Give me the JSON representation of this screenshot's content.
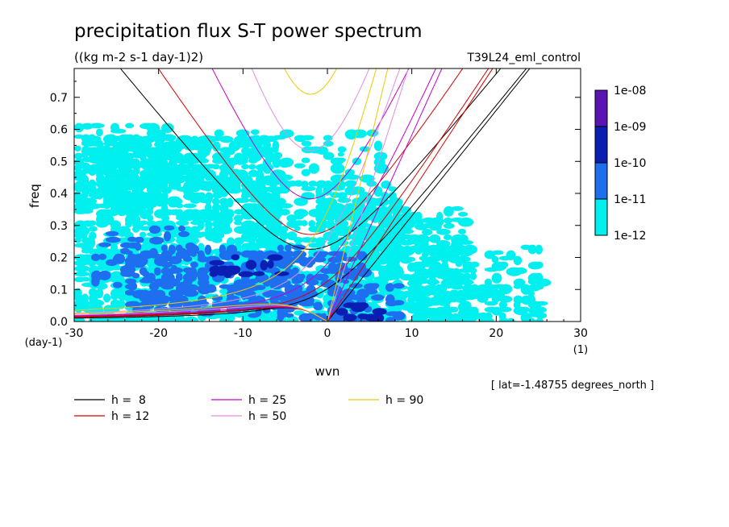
{
  "chart_data": {
    "type": "heatmap",
    "title": "precipitation flux S-T power spectrum",
    "subtitle": "((kg m-2 s-1 day-1)2)",
    "run_label": "T39L24_eml_control",
    "xlabel": "wvn",
    "ylabel": "freq",
    "x_unit": "(1)",
    "y_unit": "(day-1)",
    "location_note": "[ lat=-1.48755 degrees_north ]",
    "xlim": [
      -30,
      30
    ],
    "ylim": [
      0,
      0.79
    ],
    "x_ticks": [
      -30,
      -20,
      -10,
      0,
      10,
      20,
      30
    ],
    "x_tick_labels": [
      "-30",
      "-20",
      "-10",
      "0",
      "10",
      "20",
      "30"
    ],
    "y_ticks": [
      0,
      0.1,
      0.2,
      0.3,
      0.4,
      0.5,
      0.6,
      0.7
    ],
    "y_tick_labels": [
      "0.0",
      "0.1",
      "0.2",
      "0.3",
      "0.4",
      "0.5",
      "0.6",
      "0.7"
    ],
    "colorbar": {
      "labels": [
        "1e-08",
        "1e-09",
        "1e-10",
        "1e-11",
        "1e-12"
      ],
      "bands": [
        {
          "min": 1e-09,
          "max": 1e-08,
          "color": "#5a14b4"
        },
        {
          "min": 1e-10,
          "max": 1e-09,
          "color": "#0a1eb4"
        },
        {
          "min": 1e-11,
          "max": 1e-10,
          "color": "#1e6ef0"
        },
        {
          "min": 1e-12,
          "max": 1e-11,
          "color": "#00f0f0"
        }
      ]
    },
    "field": {
      "level_colors": [
        "#00f0f0",
        "#1e6ef0",
        "#0a1eb4"
      ],
      "regions": [
        {
          "level": 0,
          "kmin": -30,
          "kmax": -6,
          "fmin": 0.0,
          "fmax": 0.58,
          "density": 0.78
        },
        {
          "level": 0,
          "kmin": -30,
          "kmax": -18,
          "fmin": 0.36,
          "fmax": 0.62,
          "density": 0.45
        },
        {
          "level": 0,
          "kmin": -10,
          "kmax": 8,
          "fmin": 0.0,
          "fmax": 0.44,
          "density": 0.55
        },
        {
          "level": 0,
          "kmin": 0,
          "kmax": 16,
          "fmin": 0.0,
          "fmax": 0.36,
          "density": 0.72
        },
        {
          "level": 0,
          "kmin": 10,
          "kmax": 25,
          "fmin": 0.0,
          "fmax": 0.24,
          "density": 0.5
        },
        {
          "level": 0,
          "kmin": -22,
          "kmax": 6,
          "fmin": 0.44,
          "fmax": 0.6,
          "density": 0.25
        },
        {
          "level": 1,
          "kmin": -24,
          "kmax": -4,
          "fmin": 0.03,
          "fmax": 0.24,
          "density": 0.55
        },
        {
          "level": 1,
          "kmin": -12,
          "kmax": 4,
          "fmin": 0.02,
          "fmax": 0.22,
          "density": 0.45
        },
        {
          "level": 1,
          "kmin": 0,
          "kmax": 8,
          "fmin": 0.0,
          "fmax": 0.12,
          "density": 0.5
        },
        {
          "level": 1,
          "kmin": -28,
          "kmax": -16,
          "fmin": 0.12,
          "fmax": 0.3,
          "density": 0.25
        },
        {
          "level": 2,
          "kmin": -14,
          "kmax": -6,
          "fmin": 0.14,
          "fmax": 0.21,
          "density": 0.4
        },
        {
          "level": 2,
          "kmin": 1,
          "kmax": 6,
          "fmin": 0.01,
          "fmax": 0.06,
          "density": 0.45
        }
      ]
    },
    "series": [
      {
        "name": "h =  8",
        "h": 8,
        "color": "#000000"
      },
      {
        "name": "h = 12",
        "h": 12,
        "color": "#d80000"
      },
      {
        "name": "h = 25",
        "h": 25,
        "color": "#c800c8"
      },
      {
        "name": "h = 50",
        "h": 50,
        "color": "#e08ee0"
      },
      {
        "name": "h = 90",
        "h": 90,
        "color": "#f0c800"
      }
    ],
    "legend_placement": "below"
  }
}
